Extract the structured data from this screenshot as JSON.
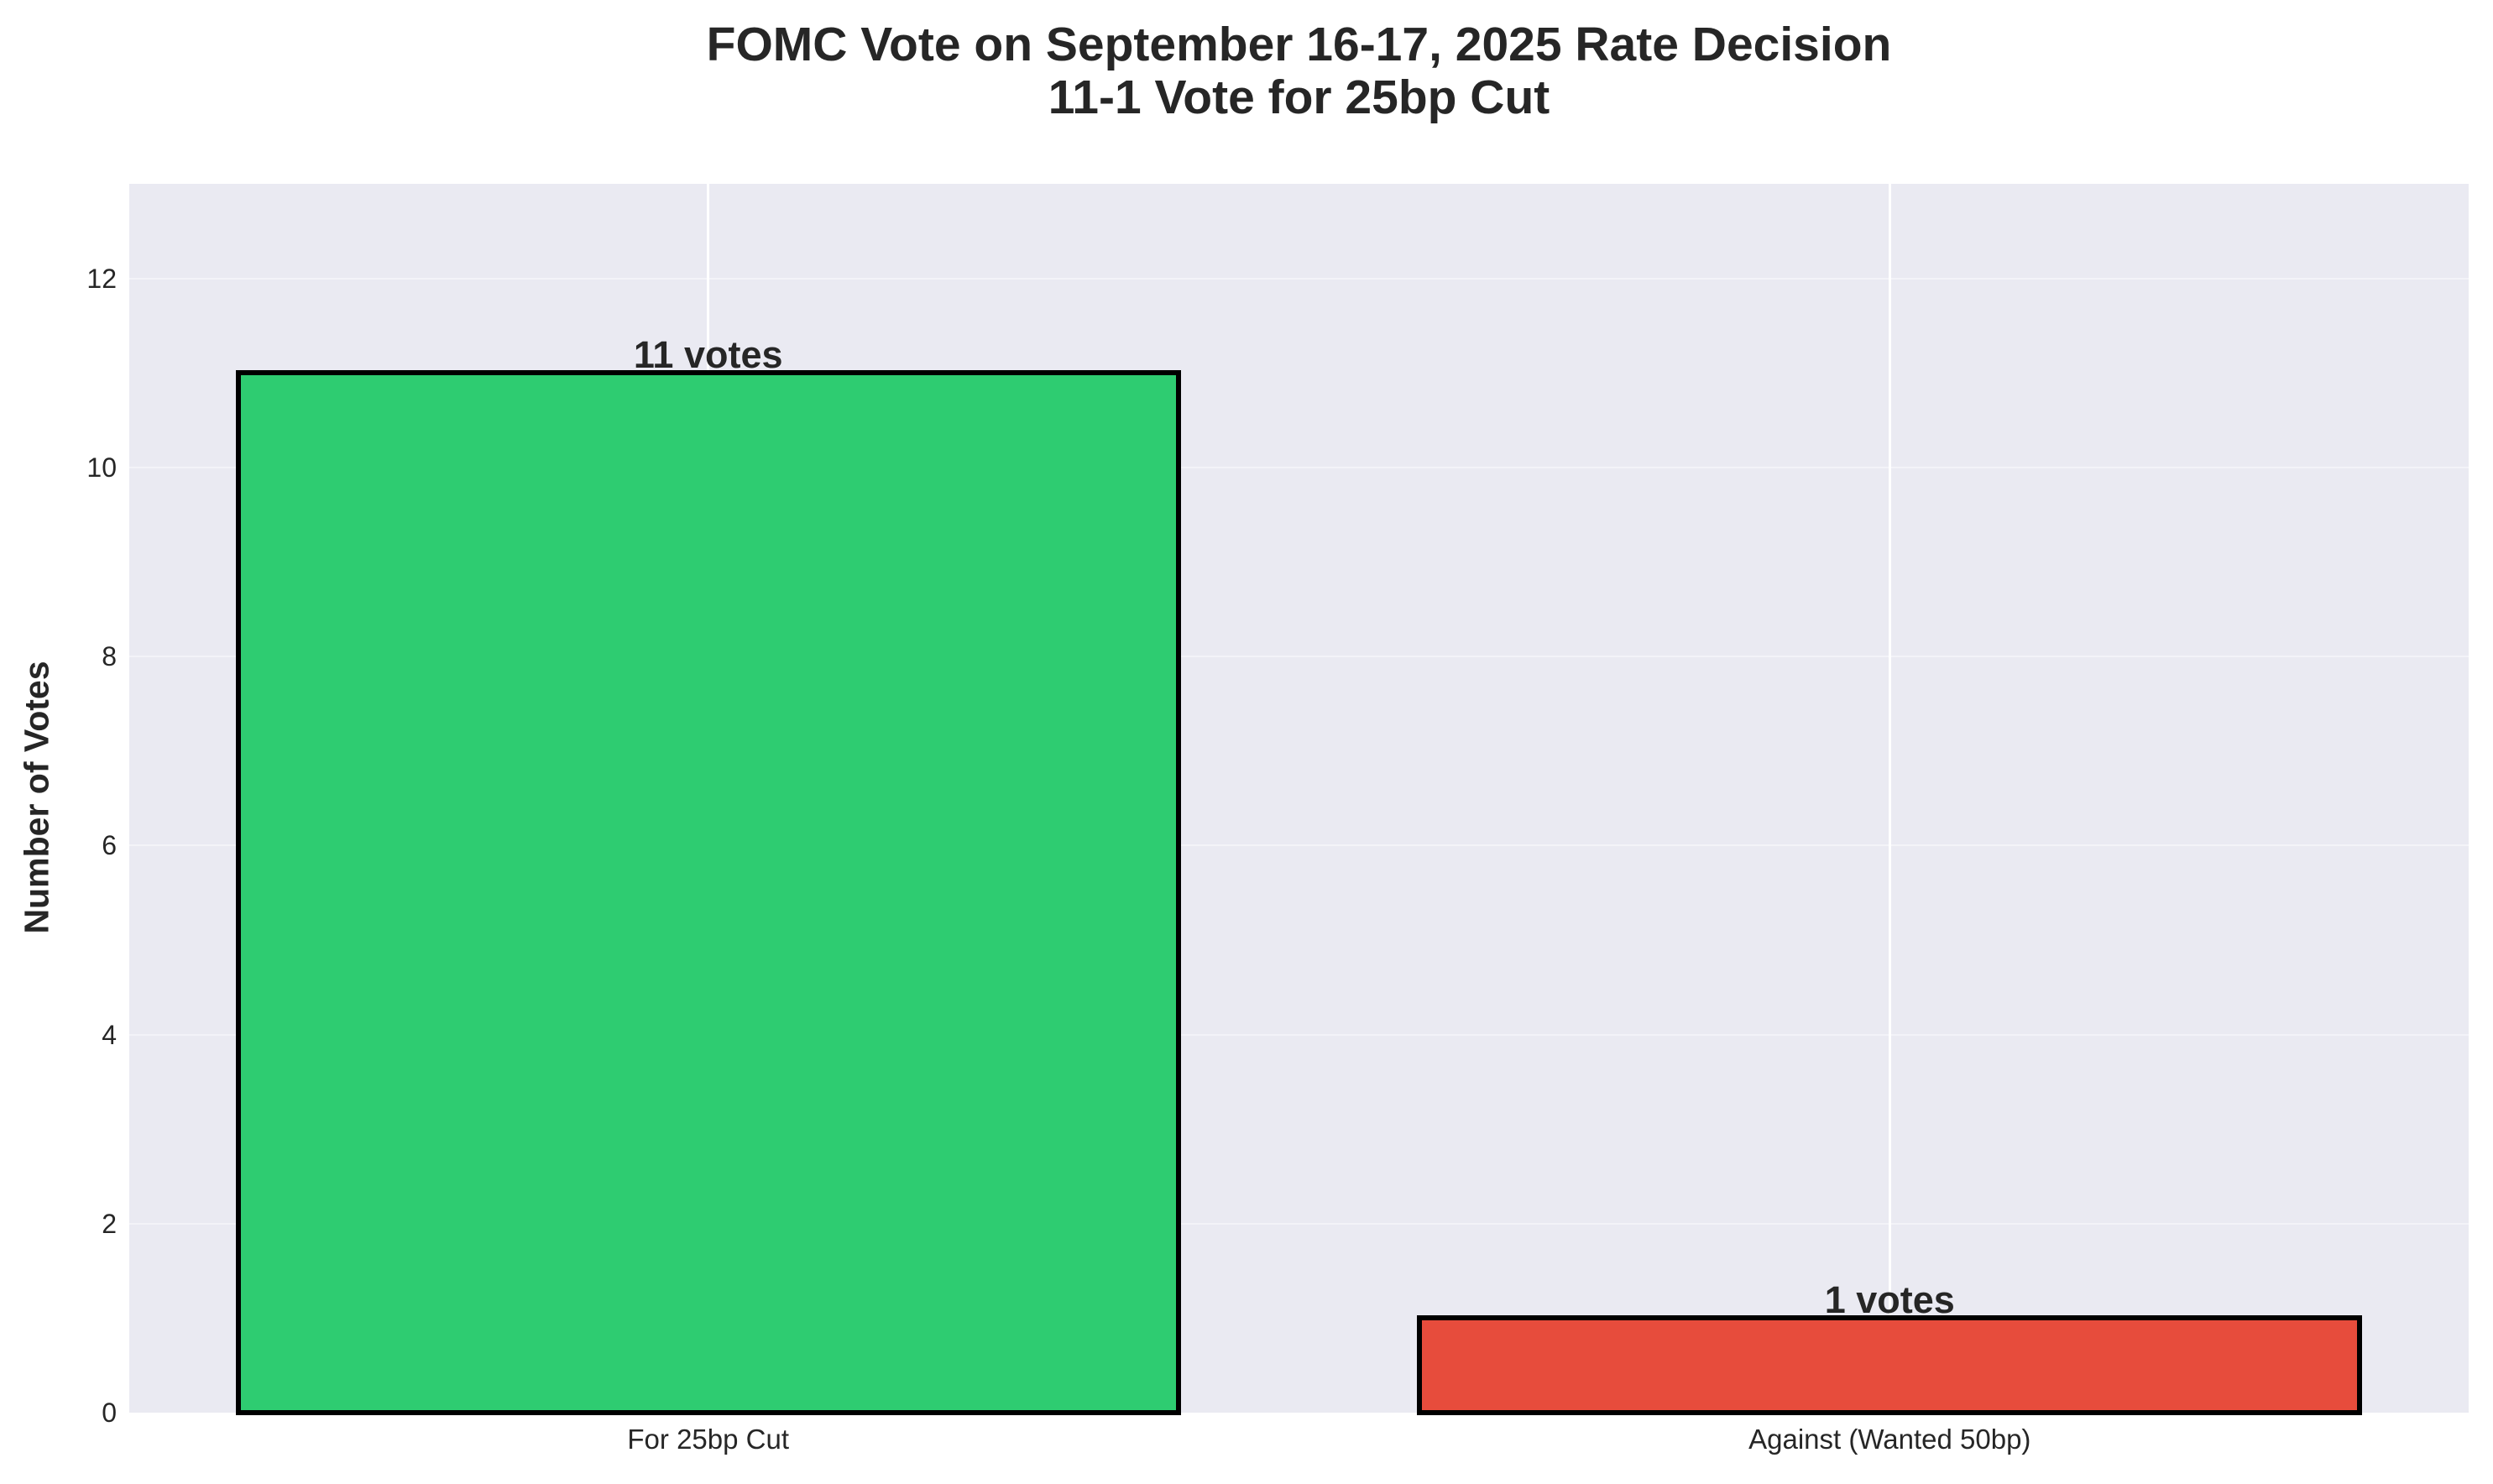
{
  "chart_data": {
    "type": "bar",
    "title": "FOMC Vote on September 16-17, 2025 Rate Decision",
    "subtitle": "11-1 Vote for 25bp Cut",
    "title_lines": [
      "FOMC Vote on September 16-17, 2025 Rate Decision",
      "11-1 Vote for 25bp Cut"
    ],
    "categories": [
      "For 25bp Cut",
      "Against (Wanted 50bp)"
    ],
    "values": [
      11,
      1
    ],
    "bar_labels": [
      "11 votes",
      "1 votes"
    ],
    "colors": [
      "#2ecc71",
      "#e74c3c"
    ],
    "edge_color": "#000000",
    "xlabel": "",
    "ylabel": "Number of Votes",
    "ylim": [
      0,
      13
    ],
    "yticks": [
      0,
      2,
      4,
      6,
      8,
      10,
      12
    ],
    "grid": true,
    "legend": null,
    "background": "#eaeaf2"
  }
}
